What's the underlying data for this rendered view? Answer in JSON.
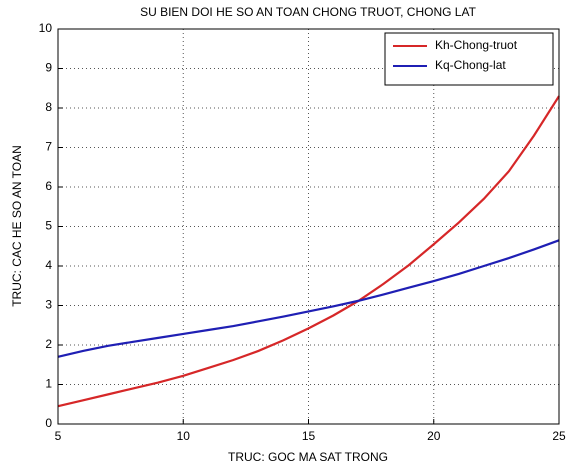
{
  "chart_data": {
    "type": "line",
    "title": "SU BIEN DOI HE SO AN TOAN CHONG TRUOT, CHONG LAT",
    "xlabel": "TRUC: GOC MA SAT TRONG",
    "ylabel": "TRUC: CAC HE SO AN TOAN",
    "x": [
      5,
      6,
      7,
      8,
      9,
      10,
      11,
      12,
      13,
      14,
      15,
      16,
      17,
      18,
      19,
      20,
      21,
      22,
      23,
      24,
      25
    ],
    "series": [
      {
        "name": "Kh-Chong-truot",
        "color": "#d62728",
        "values": [
          0.45,
          0.6,
          0.75,
          0.9,
          1.05,
          1.22,
          1.42,
          1.62,
          1.85,
          2.12,
          2.42,
          2.75,
          3.12,
          3.55,
          4.02,
          4.55,
          5.1,
          5.7,
          6.4,
          7.3,
          8.3
        ]
      },
      {
        "name": "Kq-Chong-lat",
        "color": "#1f1fb4",
        "values": [
          1.7,
          1.85,
          1.98,
          2.08,
          2.18,
          2.28,
          2.38,
          2.48,
          2.6,
          2.72,
          2.85,
          2.98,
          3.12,
          3.28,
          3.45,
          3.62,
          3.8,
          4.0,
          4.2,
          4.42,
          4.65
        ]
      }
    ],
    "xlim": [
      5,
      25
    ],
    "xticks": [
      5,
      10,
      15,
      20,
      25
    ],
    "ylim": [
      0,
      10
    ],
    "yticks": [
      0,
      1,
      2,
      3,
      4,
      5,
      6,
      7,
      8,
      9,
      10
    ],
    "grid": true,
    "legend": "upper right"
  }
}
